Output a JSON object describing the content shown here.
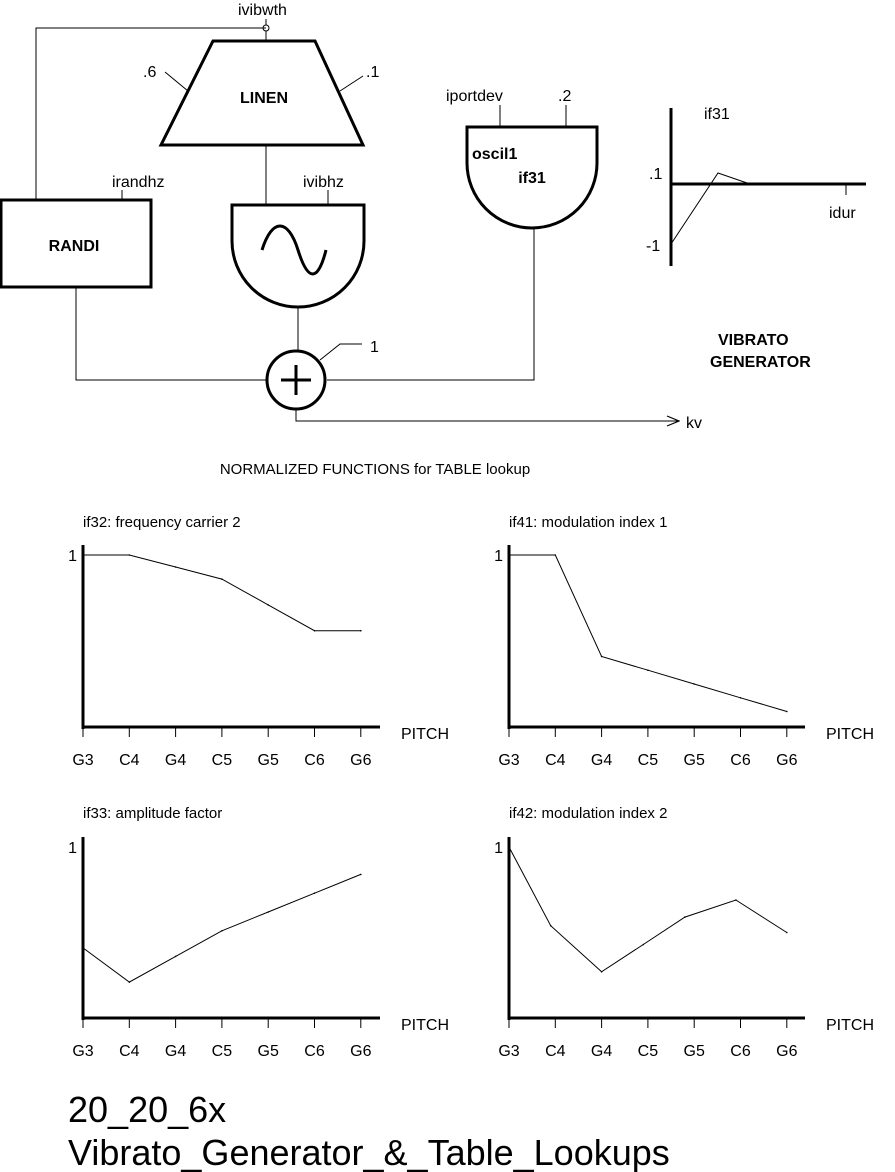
{
  "diagram": {
    "linen": {
      "label": "LINEN",
      "input_left": ".6",
      "input_right": ".1",
      "amp_input": "ivibwth"
    },
    "randi": {
      "label": "RANDI",
      "freq_input": "irandhz"
    },
    "oscil": {
      "freq_input": "ivibhz"
    },
    "oscil1": {
      "label": "oscil1",
      "table": "if31",
      "amp_input": "iportdev",
      "freq_input": ".2"
    },
    "adder": {
      "input_label": "1",
      "output_label": "kv"
    },
    "if31_graph": {
      "title": "if31",
      "top_tick": ".1",
      "bottom_tick": "-1",
      "x_end_label": "idur"
    },
    "block_title": {
      "line1": "VIBRATO",
      "line2": "GENERATOR"
    }
  },
  "section_heading": "NORMALIZED FUNCTIONS for TABLE lookup",
  "chart_data": [
    {
      "type": "line",
      "title": "if32: frequency carrier 2",
      "xlabel": "PITCH",
      "ytick": "1",
      "categories": [
        "G3",
        "C4",
        "G4",
        "C5",
        "G5",
        "C6",
        "G6"
      ],
      "x": [
        0,
        1,
        2,
        3,
        4,
        5,
        6
      ],
      "values": [
        1.0,
        1.0,
        0.93,
        0.86,
        0.71,
        0.56,
        0.56
      ],
      "ylim": [
        0,
        1
      ]
    },
    {
      "type": "line",
      "title": "if41: modulation index 1",
      "xlabel": "PITCH",
      "ytick": "1",
      "categories": [
        "G3",
        "C4",
        "G4",
        "C5",
        "G5",
        "C6",
        "G6"
      ],
      "x": [
        0,
        1,
        2,
        3,
        4,
        5,
        6
      ],
      "values": [
        1.0,
        1.0,
        0.41,
        0.33,
        0.25,
        0.17,
        0.09
      ],
      "ylim": [
        0,
        1
      ]
    },
    {
      "type": "line",
      "title": "if33: amplitude factor",
      "xlabel": "PITCH",
      "ytick": "1",
      "categories": [
        "G3",
        "C4",
        "G4",
        "C5",
        "G5",
        "C6",
        "G6"
      ],
      "x": [
        0,
        1,
        2,
        3,
        4,
        5,
        6
      ],
      "values": [
        0.41,
        0.21,
        0.36,
        0.51,
        0.62,
        0.73,
        0.84
      ],
      "ylim": [
        0,
        1
      ]
    },
    {
      "type": "line",
      "title": "if42: modulation index 2",
      "xlabel": "PITCH",
      "ytick": "1",
      "categories": [
        "G3",
        "C4",
        "G4",
        "C5",
        "G5",
        "C6",
        "G6"
      ],
      "x": [
        0,
        0.9,
        2,
        2.9,
        3.8,
        4.9,
        6
      ],
      "values": [
        1.0,
        0.54,
        0.27,
        0.43,
        0.59,
        0.69,
        0.5
      ],
      "ylim": [
        0,
        1
      ]
    }
  ],
  "caption": {
    "line1": "20_20_6x",
    "line2": "Vibrato_Generator_&_Table_Lookups"
  }
}
